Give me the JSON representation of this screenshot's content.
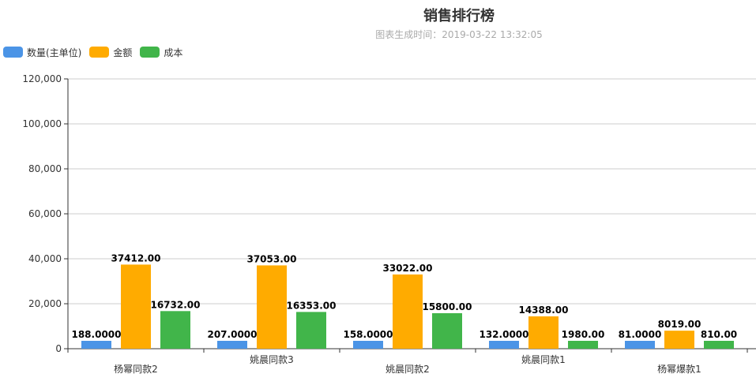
{
  "title": "销售排行榜",
  "subtitle": "图表生成时间：2019-03-22 13:32:05",
  "chart_data": {
    "type": "bar",
    "title": "销售排行榜",
    "subtitle": "图表生成时间：2019-03-22 13:32:05",
    "categories": [
      "杨幂同款2",
      "姚晨同款3",
      "姚晨同款2",
      "姚晨同款1",
      "杨幂爆款1"
    ],
    "series": [
      {
        "name": "数量(主单位)",
        "color": "#4b94e6",
        "values": [
          188,
          207,
          158,
          132,
          81
        ],
        "labels": [
          "188.0000",
          "207.0000",
          "158.0000",
          "132.0000",
          "81.0000"
        ]
      },
      {
        "name": "金额",
        "color": "#ffab00",
        "values": [
          37412,
          37053,
          33022,
          14388,
          8019
        ],
        "labels": [
          "37412.00",
          "37053.00",
          "33022.00",
          "14388.00",
          "8019.00"
        ]
      },
      {
        "name": "成本",
        "color": "#41b54a",
        "values": [
          16732,
          16353,
          15800,
          1980,
          810
        ],
        "labels": [
          "16732.00",
          "16353.00",
          "15800.00",
          "1980.00",
          "810.00"
        ]
      }
    ],
    "ylim": [
      0,
      120000
    ],
    "yticks": [
      0,
      20000,
      40000,
      60000,
      80000,
      100000,
      120000
    ],
    "ytick_labels": [
      "0",
      "20,000",
      "40,000",
      "60,000",
      "80,000",
      "100,000",
      "120,000"
    ],
    "grid": true,
    "legend_position": "top-left"
  }
}
